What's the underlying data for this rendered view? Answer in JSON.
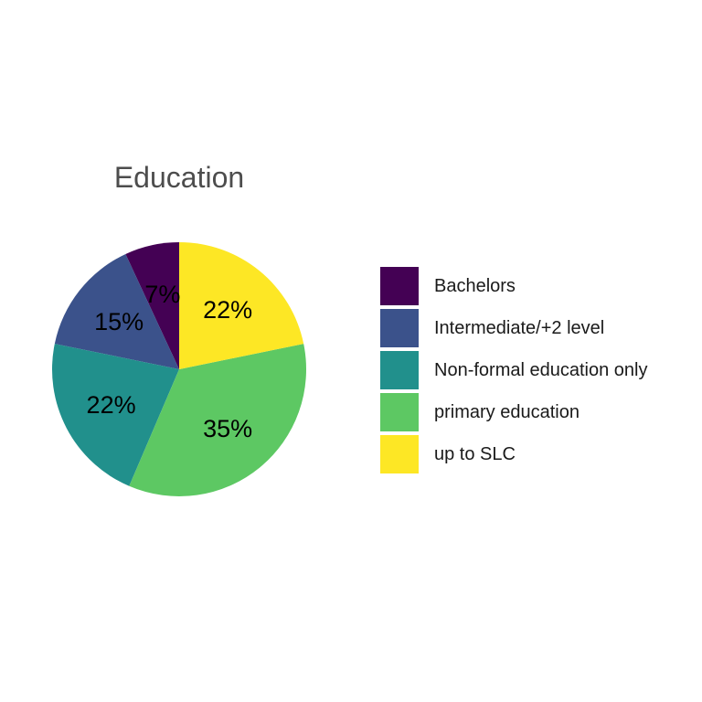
{
  "chart_data": {
    "type": "pie",
    "title": "Education",
    "categories": [
      "Bachelors",
      "Intermediate/+2 level",
      "Non-formal education only",
      "primary education",
      "up to SLC"
    ],
    "values": [
      7,
      15,
      22,
      35,
      22
    ],
    "labels": [
      "7%",
      "15%",
      "22%",
      "35%",
      "22%"
    ],
    "colors": [
      "#440154",
      "#3b528b",
      "#21908c",
      "#5dc863",
      "#fde725"
    ],
    "legend_position": "right",
    "direction": "counterclockwise from top"
  }
}
